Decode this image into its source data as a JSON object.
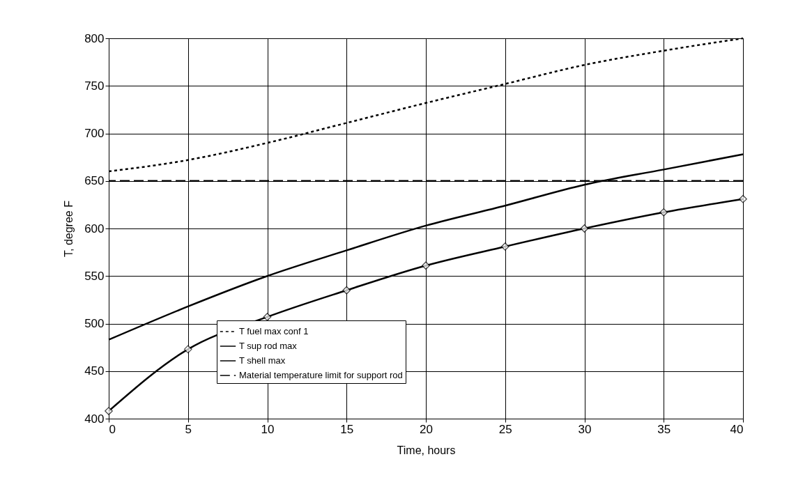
{
  "chart_data": {
    "type": "line",
    "xlabel": "Time, hours",
    "ylabel": "T, degree F",
    "x": [
      0,
      5,
      10,
      15,
      20,
      25,
      30,
      35,
      40
    ],
    "series": [
      {
        "name": "T fuel max conf 1",
        "color": "#000000",
        "line_style": "dotted",
        "marker": "none",
        "values": [
          660,
          672,
          690,
          711,
          732,
          752,
          772,
          787,
          800
        ]
      },
      {
        "name": "T sup rod max",
        "color": "#000000",
        "line_style": "solid",
        "marker": "none",
        "values": [
          483,
          518,
          550,
          577,
          603,
          624,
          646,
          662,
          678
        ]
      },
      {
        "name": "T shell max",
        "color": "#000000",
        "line_style": "solid",
        "marker": "diamond",
        "values": [
          408,
          473,
          507,
          535,
          561,
          581,
          600,
          617,
          631
        ]
      }
    ],
    "ref_lines": [
      {
        "axis": "y",
        "value": 650,
        "label": "Material temperature limit for support rod",
        "color": "#000000",
        "line_style": "dashed"
      }
    ],
    "xlim": [
      0,
      40
    ],
    "xticks": [
      0,
      5,
      10,
      15,
      20,
      25,
      30,
      35,
      40
    ],
    "ylim": [
      400,
      800
    ],
    "yticks": [
      400,
      450,
      500,
      550,
      600,
      650,
      700,
      750,
      800
    ],
    "grid": true,
    "legend": "bottom"
  }
}
